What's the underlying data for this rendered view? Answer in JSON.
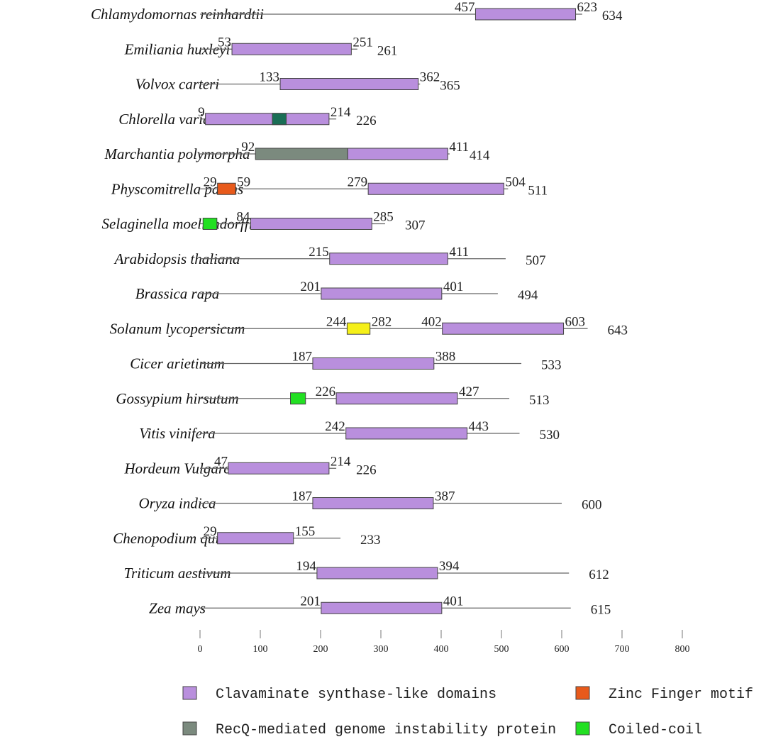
{
  "chart_data": {
    "type": "domain-diagram",
    "axis": {
      "ticks": [
        0,
        100,
        200,
        300,
        400,
        500,
        600,
        700,
        800
      ]
    },
    "legend": [
      {
        "key": "csl",
        "label": "Clavaminate synthase-like domains",
        "color": "#b98fdd"
      },
      {
        "key": "zinc",
        "label": "Zinc Finger motif",
        "color": "#e85a1b"
      },
      {
        "key": "recq",
        "label": "RecQ-mediated genome instability protein",
        "color": "#7b8a7e"
      },
      {
        "key": "coil",
        "label": "Coiled-coil",
        "color": "#22e022"
      }
    ],
    "extra_colors": {
      "teal": "#1a6e55",
      "yellow": "#f5f019"
    },
    "proteins": [
      {
        "species": "Chlamydomornas reinhardtii",
        "length": 634,
        "length_label": "634",
        "domains": [
          {
            "type": "csl",
            "start": 457,
            "end": 623,
            "start_label": "457",
            "end_label": "623"
          }
        ]
      },
      {
        "species": "Emiliania huxleyi",
        "length": 261,
        "length_label": "261",
        "domains": [
          {
            "type": "csl",
            "start": 53,
            "end": 251,
            "start_label": "53",
            "end_label": "251"
          }
        ]
      },
      {
        "species": "Volvox carteri",
        "length": 365,
        "length_label": "365",
        "domains": [
          {
            "type": "csl",
            "start": 133,
            "end": 362,
            "start_label": "133",
            "end_label": "362"
          }
        ]
      },
      {
        "species": "Chlorella variabilis",
        "length": 226,
        "length_label": "226",
        "domains": [
          {
            "type": "csl",
            "start": 9,
            "end": 214,
            "start_label": "9",
            "end_label": "214"
          },
          {
            "type": "teal",
            "start": 120,
            "end": 143
          }
        ]
      },
      {
        "species": "Marchantia polymorpha",
        "length": 414,
        "length_label": "414",
        "domains": [
          {
            "type": "recq",
            "start": 92,
            "end": 245,
            "start_label": "92"
          },
          {
            "type": "csl",
            "start": 245,
            "end": 411,
            "end_label": "411"
          }
        ]
      },
      {
        "species": "Physcomitrella patens",
        "length": 511,
        "length_label": "511",
        "domains": [
          {
            "type": "zinc",
            "start": 29,
            "end": 59,
            "start_label": "29",
            "end_label": "59"
          },
          {
            "type": "csl",
            "start": 279,
            "end": 504,
            "start_label": "279",
            "end_label": "504"
          }
        ]
      },
      {
        "species": "Selaginella moellendorffi",
        "length": 307,
        "length_label": "307",
        "domains": [
          {
            "type": "coil",
            "start": 5,
            "end": 28
          },
          {
            "type": "csl",
            "start": 84,
            "end": 285,
            "start_label": "84",
            "end_label": "285"
          }
        ]
      },
      {
        "species": "Arabidopsis thaliana",
        "length": 507,
        "length_label": "507",
        "domains": [
          {
            "type": "csl",
            "start": 215,
            "end": 411,
            "start_label": "215",
            "end_label": "411"
          }
        ]
      },
      {
        "species": "Brassica rapa",
        "length": 494,
        "length_label": "494",
        "domains": [
          {
            "type": "csl",
            "start": 201,
            "end": 401,
            "start_label": "201",
            "end_label": "401"
          }
        ]
      },
      {
        "species": "Solanum lycopersicum",
        "length": 643,
        "length_label": "643",
        "domains": [
          {
            "type": "yellow",
            "start": 244,
            "end": 282,
            "start_label": "244",
            "end_label": "282"
          },
          {
            "type": "csl",
            "start": 402,
            "end": 603,
            "start_label": "402",
            "end_label": "603"
          }
        ]
      },
      {
        "species": "Cicer arietinum",
        "length": 533,
        "length_label": "533",
        "domains": [
          {
            "type": "csl",
            "start": 187,
            "end": 388,
            "start_label": "187",
            "end_label": "388"
          }
        ]
      },
      {
        "species": "Gossypium hirsutum",
        "length": 513,
        "length_label": "513",
        "domains": [
          {
            "type": "coil",
            "start": 150,
            "end": 175
          },
          {
            "type": "csl",
            "start": 226,
            "end": 427,
            "start_label": "226",
            "end_label": "427"
          }
        ]
      },
      {
        "species": "Vitis vinifera",
        "length": 530,
        "length_label": "530",
        "domains": [
          {
            "type": "csl",
            "start": 242,
            "end": 443,
            "start_label": "242",
            "end_label": "443"
          }
        ]
      },
      {
        "species": "Hordeum Vulgare",
        "length": 226,
        "length_label": "226",
        "domains": [
          {
            "type": "csl",
            "start": 47,
            "end": 214,
            "start_label": "47",
            "end_label": "214"
          }
        ]
      },
      {
        "species": "Oryza indica",
        "length": 600,
        "length_label": "600",
        "domains": [
          {
            "type": "csl",
            "start": 187,
            "end": 387,
            "start_label": "187",
            "end_label": "387"
          }
        ]
      },
      {
        "species": "Chenopodium quinoa",
        "length": 233,
        "length_label": "233",
        "domains": [
          {
            "type": "csl",
            "start": 29,
            "end": 155,
            "start_label": "29",
            "end_label": "155"
          }
        ]
      },
      {
        "species": "Triticum aestivum",
        "length": 612,
        "length_label": "612",
        "domains": [
          {
            "type": "csl",
            "start": 194,
            "end": 394,
            "start_label": "194",
            "end_label": "394"
          }
        ]
      },
      {
        "species": "Zea mays",
        "length": 615,
        "length_label": "615",
        "domains": [
          {
            "type": "csl",
            "start": 201,
            "end": 401,
            "start_label": "201",
            "end_label": "401"
          }
        ]
      }
    ]
  }
}
